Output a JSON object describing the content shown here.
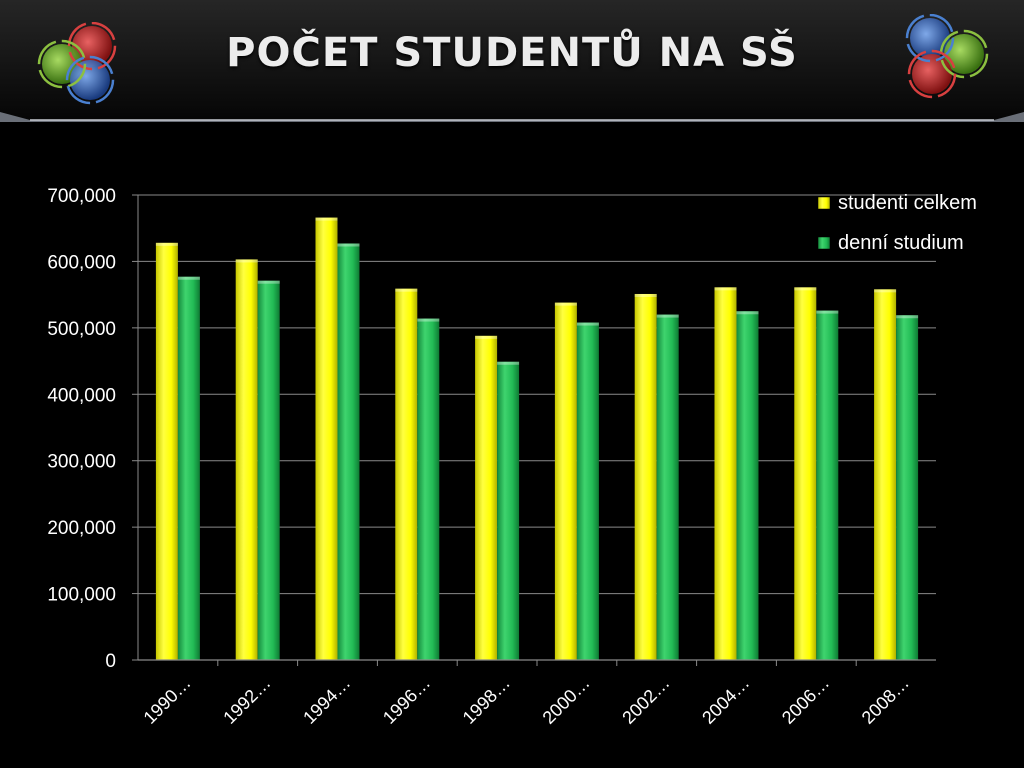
{
  "title": "POČET STUDENTŮ NA SŠ",
  "colors": {
    "background": "#000000",
    "series_1": "#ffff00",
    "series_2": "#22bb55"
  },
  "logo_icon": "rings-logo-icon",
  "chart_data": {
    "type": "bar",
    "title": "",
    "xlabel": "",
    "ylabel": "",
    "ylim": [
      0,
      700000
    ],
    "yticks": [
      "0",
      "100,000",
      "200,000",
      "300,000",
      "400,000",
      "500,000",
      "600,000",
      "700,000"
    ],
    "grid": true,
    "legend_position": "top-right",
    "categories": [
      "1990…",
      "1992…",
      "1994…",
      "1996…",
      "1998…",
      "2000…",
      "2002…",
      "2004…",
      "2006…",
      "2008…"
    ],
    "series": [
      {
        "name": "studenti celkem",
        "color": "#ffff00",
        "values": [
          628000,
          603000,
          666000,
          559000,
          488000,
          538000,
          551000,
          561000,
          561000,
          558000
        ]
      },
      {
        "name": "denní studium",
        "color": "#22bb55",
        "values": [
          577000,
          571000,
          627000,
          514000,
          449000,
          508000,
          520000,
          525000,
          526000,
          519000
        ]
      }
    ]
  }
}
